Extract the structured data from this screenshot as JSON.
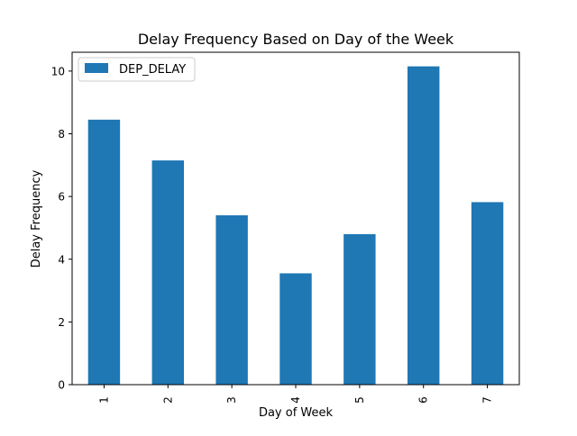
{
  "chart_data": {
    "type": "bar",
    "title": "Delay Frequency Based on Day of the Week",
    "xlabel": "Day of Week",
    "ylabel": "Delay Frequency",
    "categories": [
      "1",
      "2",
      "3",
      "4",
      "5",
      "6",
      "7"
    ],
    "series": [
      {
        "name": "DEP_DELAY",
        "values": [
          8.45,
          7.15,
          5.4,
          3.55,
          4.8,
          10.15,
          5.82
        ]
      }
    ],
    "ylim": [
      0,
      10.6
    ],
    "yticks": [
      "0",
      "2",
      "4",
      "6",
      "8",
      "10"
    ],
    "grid": false,
    "legend_position": "top-left",
    "x_tick_rotation": "vertical"
  },
  "colors": {
    "bar": "#1f77b4",
    "axis": "#000000",
    "legend_border": "#cccccc"
  }
}
